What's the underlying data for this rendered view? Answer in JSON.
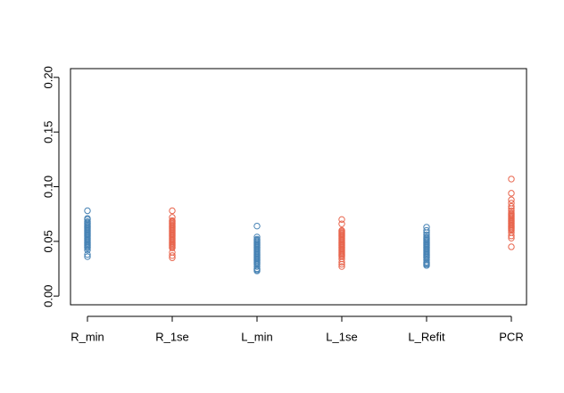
{
  "chart_data": {
    "type": "scatter",
    "title": "",
    "xlabel": "",
    "ylabel": "",
    "ylim": [
      -0.008,
      0.208
    ],
    "yticks": [
      0.0,
      0.05,
      0.1,
      0.15,
      0.2
    ],
    "ytick_labels": [
      "0.00",
      "0.05",
      "0.10",
      "0.15",
      "0.20"
    ],
    "categories": [
      "R_min",
      "R_1se",
      "L_min",
      "L_1se",
      "L_Refit",
      "PCR"
    ],
    "grid": false,
    "legend": "none",
    "series": [
      {
        "color": "#4682B4",
        "values": [
          0.078,
          0.071,
          0.07,
          0.068,
          0.067,
          0.066,
          0.065,
          0.064,
          0.063,
          0.062,
          0.061,
          0.06,
          0.059,
          0.058,
          0.057,
          0.056,
          0.055,
          0.054,
          0.053,
          0.052,
          0.051,
          0.05,
          0.049,
          0.048,
          0.047,
          0.046,
          0.045,
          0.044,
          0.042,
          0.038,
          0.036
        ]
      },
      {
        "color": "#E8654D",
        "values": [
          0.078,
          0.072,
          0.069,
          0.068,
          0.067,
          0.066,
          0.065,
          0.064,
          0.063,
          0.062,
          0.061,
          0.06,
          0.059,
          0.058,
          0.057,
          0.056,
          0.055,
          0.054,
          0.053,
          0.052,
          0.051,
          0.05,
          0.049,
          0.048,
          0.047,
          0.046,
          0.045,
          0.044,
          0.04,
          0.037,
          0.035
        ]
      },
      {
        "color": "#4682B4",
        "values": [
          0.064,
          0.054,
          0.052,
          0.051,
          0.05,
          0.049,
          0.048,
          0.047,
          0.046,
          0.045,
          0.044,
          0.043,
          0.042,
          0.041,
          0.04,
          0.039,
          0.038,
          0.037,
          0.036,
          0.035,
          0.034,
          0.033,
          0.032,
          0.031,
          0.03,
          0.029,
          0.027,
          0.025,
          0.024,
          0.023
        ]
      },
      {
        "color": "#E8654D",
        "values": [
          0.07,
          0.066,
          0.06,
          0.059,
          0.058,
          0.057,
          0.056,
          0.055,
          0.054,
          0.053,
          0.052,
          0.051,
          0.05,
          0.049,
          0.048,
          0.047,
          0.046,
          0.045,
          0.044,
          0.043,
          0.042,
          0.041,
          0.04,
          0.039,
          0.038,
          0.037,
          0.036,
          0.034,
          0.031,
          0.029,
          0.027
        ]
      },
      {
        "color": "#4682B4",
        "values": [
          0.063,
          0.06,
          0.058,
          0.056,
          0.054,
          0.053,
          0.052,
          0.051,
          0.05,
          0.049,
          0.048,
          0.047,
          0.046,
          0.045,
          0.044,
          0.043,
          0.042,
          0.041,
          0.04,
          0.039,
          0.038,
          0.037,
          0.036,
          0.035,
          0.033,
          0.031,
          0.03,
          0.029,
          0.028
        ]
      },
      {
        "color": "#E8654D",
        "values": [
          0.107,
          0.094,
          0.088,
          0.085,
          0.082,
          0.08,
          0.078,
          0.076,
          0.075,
          0.074,
          0.073,
          0.072,
          0.071,
          0.07,
          0.069,
          0.068,
          0.067,
          0.066,
          0.065,
          0.064,
          0.063,
          0.062,
          0.061,
          0.06,
          0.058,
          0.055,
          0.053,
          0.045
        ]
      }
    ]
  }
}
